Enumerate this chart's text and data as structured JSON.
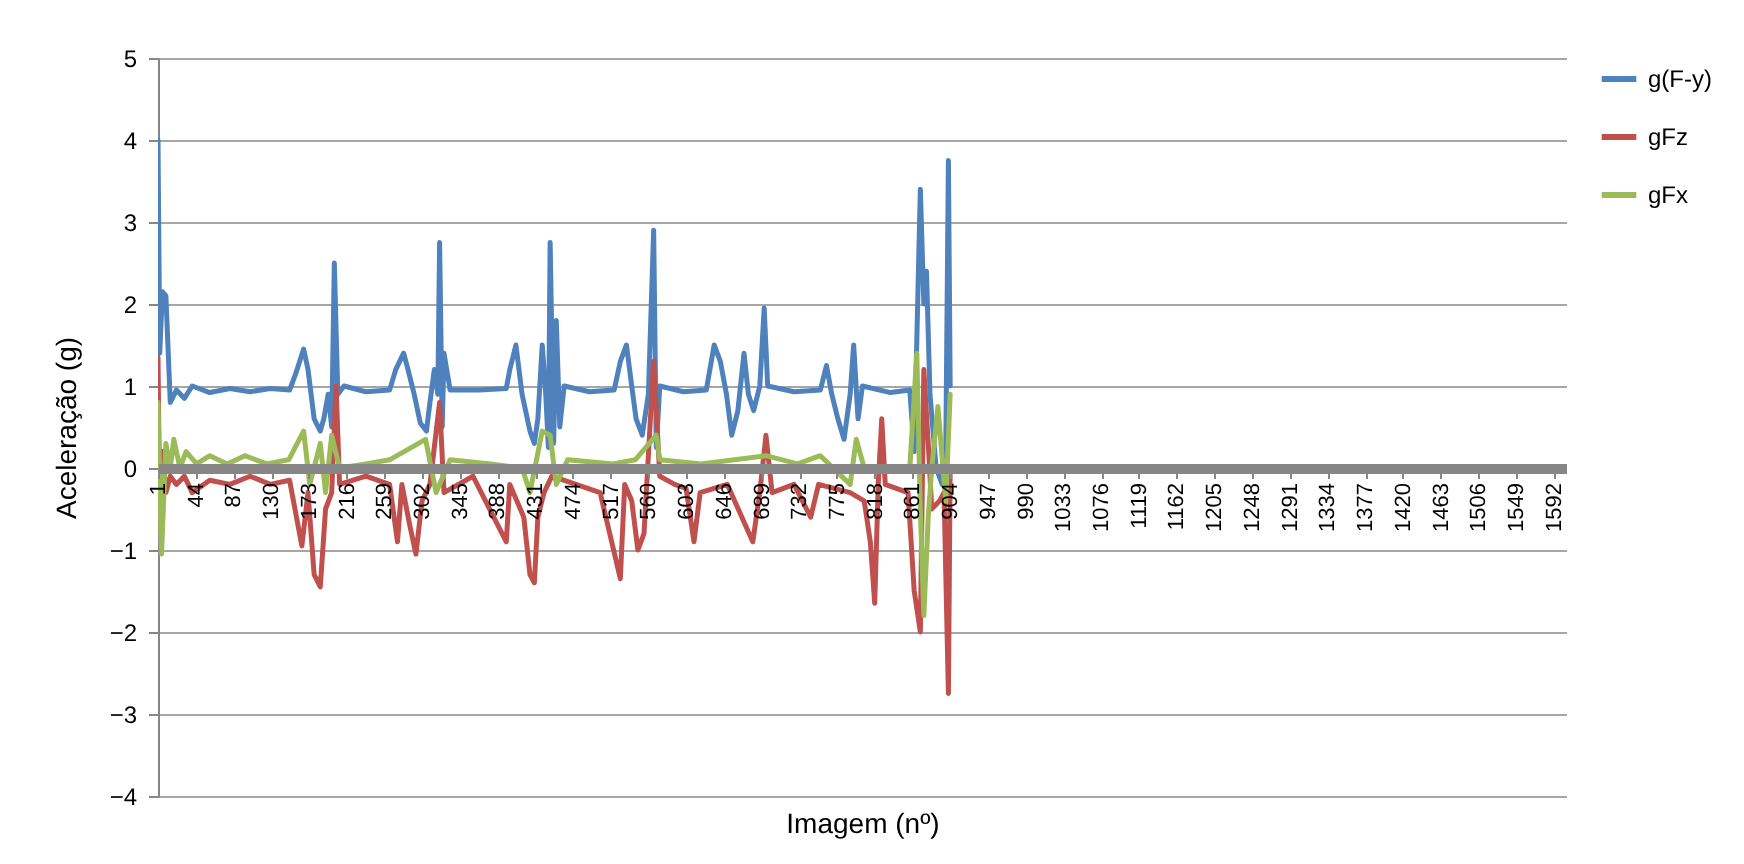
{
  "chart_data": {
    "type": "line",
    "xlabel": "Imagem (nº)",
    "ylabel": "Aceleração (g)",
    "xlim": [
      1,
      1606
    ],
    "ylim": [
      -4,
      5
    ],
    "xticks": [
      1,
      44,
      87,
      130,
      173,
      216,
      259,
      302,
      345,
      388,
      431,
      474,
      517,
      560,
      603,
      646,
      689,
      732,
      775,
      818,
      861,
      904,
      947,
      990,
      1033,
      1076,
      1119,
      1162,
      1205,
      1248,
      1291,
      1334,
      1377,
      1420,
      1463,
      1506,
      1549,
      1592
    ],
    "yticks": [
      -4,
      -3,
      -2,
      -1,
      0,
      1,
      2,
      3,
      4,
      5
    ],
    "grid": "y",
    "legend": "right",
    "line_style": "solid",
    "marker": "none",
    "series": [
      {
        "name": "g(F-y)",
        "color": "#4f81bd",
        "x": [
          1,
          3,
          6,
          10,
          15,
          22,
          31,
          40,
          60,
          83,
          106,
          129,
          151,
          158,
          167,
          172,
          179,
          186,
          190,
          195,
          199,
          202,
          206,
          213,
          238,
          265,
          272,
          281,
          286,
          293,
          300,
          307,
          311,
          316,
          320,
          322,
          325,
          327,
          334,
          368,
          398,
          402,
          409,
          416,
          425,
          430,
          434,
          439,
          443,
          446,
          448,
          452,
          455,
          459,
          464,
          493,
          521,
          528,
          535,
          541,
          546,
          553,
          560,
          566,
          569,
          573,
          600,
          626,
          635,
          642,
          649,
          655,
          662,
          669,
          674,
          680,
          687,
          692,
          696,
          726,
          756,
          763,
          769,
          776,
          783,
          790,
          794,
          799,
          804,
          836,
          858,
          863,
          870,
          874,
          877,
          881,
          888,
          895,
          899,
          902,
          904
        ],
        "values": [
          4.0,
          1.4,
          2.15,
          2.1,
          0.8,
          0.95,
          0.85,
          1.0,
          0.92,
          0.97,
          0.93,
          0.97,
          0.95,
          1.15,
          1.45,
          1.2,
          0.6,
          0.45,
          0.6,
          0.9,
          0.5,
          2.5,
          0.9,
          1.0,
          0.93,
          0.95,
          1.2,
          1.4,
          1.2,
          0.9,
          0.55,
          0.45,
          0.8,
          1.2,
          0.9,
          2.75,
          0.5,
          1.4,
          0.95,
          0.95,
          0.97,
          1.2,
          1.5,
          0.9,
          0.45,
          0.3,
          0.6,
          1.5,
          0.9,
          0.25,
          2.75,
          0.3,
          1.8,
          0.5,
          1.0,
          0.93,
          0.95,
          1.3,
          1.5,
          1.0,
          0.6,
          0.4,
          0.9,
          2.9,
          0.25,
          1.0,
          0.93,
          0.95,
          1.5,
          1.3,
          0.9,
          0.4,
          0.7,
          1.4,
          0.9,
          0.7,
          1.0,
          1.95,
          1.0,
          0.93,
          0.95,
          1.25,
          0.9,
          0.6,
          0.35,
          0.9,
          1.5,
          0.6,
          1.0,
          0.92,
          0.95,
          0.2,
          3.4,
          2.0,
          2.4,
          0.9,
          0.0,
          -0.2,
          0.2,
          3.75,
          1.0
        ]
      },
      {
        "name": "gFz",
        "color": "#c0504d",
        "x": [
          1,
          3,
          6,
          10,
          15,
          22,
          31,
          40,
          60,
          83,
          106,
          129,
          151,
          165,
          172,
          179,
          186,
          192,
          199,
          204,
          208,
          238,
          265,
          274,
          279,
          288,
          295,
          302,
          311,
          322,
          327,
          360,
          398,
          402,
          418,
          425,
          430,
          434,
          441,
          450,
          505,
          528,
          533,
          541,
          548,
          555,
          566,
          573,
          590,
          603,
          612,
          619,
          650,
          679,
          687,
          694,
          701,
          726,
          745,
          754,
          790,
          806,
          813,
          818,
          822,
          826,
          830,
          856,
          863,
          870,
          874,
          879,
          883,
          892,
          897,
          902,
          904
        ],
        "values": [
          1.35,
          -0.6,
          0.2,
          -0.3,
          -0.1,
          -0.2,
          -0.1,
          -0.3,
          -0.15,
          -0.2,
          -0.1,
          -0.2,
          -0.15,
          -0.95,
          -0.3,
          -1.3,
          -1.45,
          -0.5,
          -0.3,
          1.0,
          -0.2,
          -0.1,
          -0.2,
          -0.9,
          -0.2,
          -0.7,
          -1.05,
          -0.4,
          -0.2,
          0.8,
          -0.3,
          -0.1,
          -0.9,
          -0.2,
          -0.6,
          -1.3,
          -1.4,
          -0.6,
          -0.3,
          -0.1,
          -0.3,
          -1.35,
          -0.2,
          -0.4,
          -1.0,
          -0.8,
          1.3,
          -0.1,
          -0.2,
          -0.25,
          -0.9,
          -0.3,
          -0.2,
          -0.9,
          -0.3,
          0.4,
          -0.3,
          -0.2,
          -0.6,
          -0.2,
          -0.3,
          -0.4,
          -0.9,
          -1.65,
          -0.2,
          0.6,
          -0.2,
          -0.3,
          -1.5,
          -2.0,
          1.2,
          0.3,
          -0.5,
          -0.4,
          -0.3,
          -2.75,
          0.0
        ]
      },
      {
        "name": "gFx",
        "color": "#9bbb59",
        "x": [
          1,
          5,
          10,
          15,
          19,
          26,
          33,
          45,
          60,
          80,
          100,
          125,
          150,
          167,
          174,
          186,
          192,
          199,
          208,
          238,
          265,
          306,
          318,
          334,
          380,
          416,
          425,
          439,
          448,
          455,
          468,
          520,
          545,
          569,
          573,
          620,
          694,
          730,
          756,
          790,
          797,
          806,
          858,
          866,
          870,
          874,
          879,
          883,
          890,
          899,
          904
        ],
        "values": [
          0.8,
          -1.05,
          0.3,
          0.0,
          0.35,
          0.0,
          0.2,
          0.05,
          0.15,
          0.05,
          0.15,
          0.05,
          0.1,
          0.45,
          -0.2,
          0.3,
          -0.3,
          0.4,
          0.0,
          0.05,
          0.1,
          0.35,
          -0.3,
          0.1,
          0.05,
          0.0,
          -0.3,
          0.45,
          0.4,
          -0.2,
          0.1,
          0.05,
          0.1,
          0.4,
          0.1,
          0.05,
          0.15,
          0.05,
          0.15,
          -0.2,
          0.35,
          0.0,
          0.0,
          1.4,
          -0.5,
          -1.8,
          -0.6,
          0.0,
          0.75,
          -0.4,
          0.9
        ]
      }
    ]
  }
}
